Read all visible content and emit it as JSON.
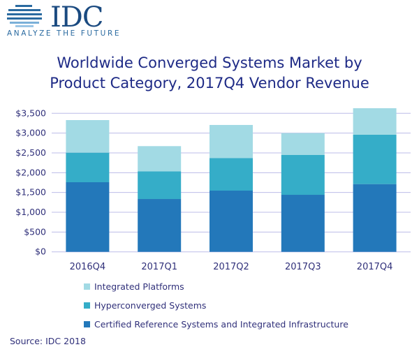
{
  "logo": {
    "brand": "IDC",
    "tagline": "ANALYZE THE FUTURE"
  },
  "chart_data": {
    "type": "bar",
    "stacked": true,
    "title": "Worldwide Converged Systems Market by Product Category, 2017Q4 Vendor Revenue",
    "title_lines": [
      "Worldwide Converged Systems Market by",
      "Product Category, 2017Q4 Vendor Revenue"
    ],
    "categories": [
      "2016Q4",
      "2017Q1",
      "2017Q2",
      "2017Q3",
      "2017Q4"
    ],
    "ylim": [
      0,
      3500
    ],
    "yticks": [
      "$0",
      "$500",
      "$1,000",
      "$1,500",
      "$2,000",
      "$2,500",
      "$3,000",
      "$3,500"
    ],
    "grid": true,
    "legend_position": "bottom",
    "series": [
      {
        "name": "Certified Reference Systems and Integrated Infrastructure",
        "color": "#2378BA",
        "values": [
          1759,
          1335,
          1547,
          1441,
          1712
        ]
      },
      {
        "name": "Hyperconverged Systems",
        "color": "#35ADC8",
        "values": [
          747,
          700,
          824,
          1006,
          1247
        ]
      },
      {
        "name": "Integrated Platforms",
        "color": "#A2DAE4",
        "values": [
          823,
          636,
          835,
          553,
          670
        ]
      }
    ]
  },
  "source": "Source: IDC 2018"
}
